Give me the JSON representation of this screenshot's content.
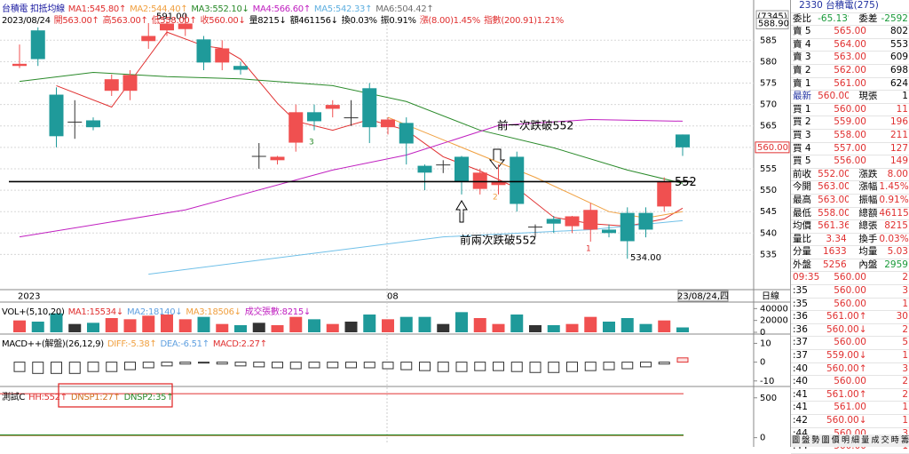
{
  "header": {
    "line1": [
      {
        "text": "台積電 扣抵均線",
        "color": "#1a1aa0"
      },
      {
        "text": "MA1:545.80↑",
        "color": "#e03030"
      },
      {
        "text": "MA2:544.40↑",
        "color": "#f0a040"
      },
      {
        "text": "MA3:552.10↓",
        "color": "#2a8a2a"
      },
      {
        "text": "MA4:566.60↑",
        "color": "#c020c0"
      },
      {
        "text": "MA5:542.33↑",
        "color": "#60b0e0"
      },
      {
        "text": "MA6:504.42↑",
        "color": "#707070"
      }
    ],
    "line2": [
      {
        "text": "2023/08/24",
        "color": "#000000"
      },
      {
        "text": "開563.00↑",
        "color": "#e03030"
      },
      {
        "text": "高563.00↑",
        "color": "#e03030"
      },
      {
        "text": "低558.00↑",
        "color": "#e03030"
      },
      {
        "text": "收560.00↓",
        "color": "#e03030"
      },
      {
        "text": "量8215↓",
        "color": "#000000"
      },
      {
        "text": "額461156↓",
        "color": "#000000"
      },
      {
        "text": "換0.03%",
        "color": "#000000"
      },
      {
        "text": "振0.91%",
        "color": "#000000"
      },
      {
        "text": "漲(8.00)1.45%",
        "color": "#e03030"
      },
      {
        "text": "指數(200.91)1.21%",
        "color": "#e03030"
      }
    ]
  },
  "price": {
    "ylim": [
      527,
      589
    ],
    "yticks": [
      535,
      540,
      545,
      550,
      555,
      560,
      565,
      570,
      575,
      580,
      585
    ],
    "code": "(7345)",
    "top": {
      "value": 588.9,
      "label": "588.90"
    },
    "current": {
      "value": 560,
      "label": "560.00"
    },
    "up_color": "#f05050",
    "down_color": "#1f9a9a",
    "candles": [
      [
        579,
        584,
        578.5,
        579.5
      ],
      [
        587.3,
        588,
        579,
        580.6
      ],
      [
        572.3,
        574,
        560,
        562.6
      ],
      [
        566,
        571,
        562,
        566
      ],
      [
        566.3,
        567,
        564,
        564.7
      ],
      [
        573.2,
        577,
        572,
        575.9
      ],
      [
        573.2,
        578,
        571,
        576.9
      ],
      [
        584.8,
        589,
        583,
        586
      ],
      [
        587.3,
        589.5,
        586,
        588.9
      ],
      [
        587.6,
        591,
        586,
        588.9
      ],
      [
        585.2,
        586,
        578,
        579.8
      ],
      [
        579.8,
        585,
        578,
        583.1
      ],
      [
        579,
        580,
        577,
        578.1
      ],
      [
        558,
        561,
        555,
        558
      ],
      [
        557,
        558,
        556,
        557.8
      ],
      [
        561.1,
        570,
        559,
        568.2
      ],
      [
        568.2,
        570,
        564,
        566.1
      ],
      [
        569,
        571,
        567,
        569.9
      ],
      [
        567,
        571,
        565,
        567
      ],
      [
        573.8,
        575,
        561,
        564.7
      ],
      [
        564.7,
        567,
        563,
        566.5
      ],
      [
        565.7,
        567,
        556,
        560.9
      ],
      [
        555.7,
        556,
        550,
        554.1
      ],
      [
        556,
        557,
        554,
        556
      ],
      [
        557.8,
        558,
        549,
        552
      ],
      [
        550.3,
        555,
        549,
        554.1
      ],
      [
        551.2,
        556,
        549,
        552
      ],
      [
        557.8,
        559,
        545,
        546.8
      ],
      [
        541.5,
        542,
        539,
        541.5
      ],
      [
        543.3,
        544,
        540,
        542.2
      ],
      [
        541.6,
        544,
        540,
        543.9
      ],
      [
        540.8,
        547,
        538,
        545.4
      ],
      [
        540.8,
        542,
        539,
        540
      ],
      [
        544.7,
        546,
        534,
        538.1
      ],
      [
        544.7,
        546,
        539,
        540.8
      ],
      [
        546.2,
        553,
        545,
        552
      ],
      [
        563,
        563,
        558,
        560
      ]
    ],
    "ma": [
      {
        "color": "#e03030",
        "x": [
          2,
          5,
          8,
          10,
          11,
          12,
          14,
          15,
          17,
          19,
          21,
          23,
          25,
          27,
          29,
          31,
          33,
          35,
          36
        ],
        "values": [
          574.4,
          569.4,
          586.9,
          583.7,
          583.1,
          580.6,
          570.3,
          566.1,
          564,
          566.5,
          564,
          557.8,
          554.5,
          550.5,
          543.7,
          542.2,
          541.6,
          543.3,
          545.8
        ]
      },
      {
        "color": "#f0a040",
        "x": [
          20,
          24,
          28,
          32,
          34,
          36
        ],
        "values": [
          567,
          560,
          553,
          545,
          543.5,
          545
        ]
      },
      {
        "color": "#2a8a2a",
        "x": [
          0,
          4,
          8,
          12,
          17,
          21,
          25,
          29,
          33,
          36
        ],
        "values": [
          575.4,
          577.5,
          576.5,
          576,
          574.4,
          570.7,
          564,
          559.9,
          554.7,
          551.6
        ]
      },
      {
        "color": "#c020c0",
        "x": [
          0,
          9,
          17,
          21,
          26,
          31,
          36
        ],
        "values": [
          539.1,
          545.4,
          554.7,
          558.2,
          565.1,
          566.5,
          566.1
        ]
      },
      {
        "color": "#70c0e8",
        "x": [
          7,
          23,
          31,
          36
        ],
        "values": [
          530.4,
          539.1,
          540.8,
          542.9
        ]
      }
    ],
    "extremes": [
      {
        "label": "591.00",
        "value": 591
      },
      {
        "label": "534.00",
        "value": 534
      }
    ],
    "level": {
      "value": 552,
      "label": "552"
    },
    "notes": [
      "前一次跌破552",
      "前兩次跌破552"
    ],
    "counts": [
      "3",
      "2",
      "1"
    ],
    "xlabels": [
      "2023",
      "08"
    ],
    "date_box": "23/08/24,四",
    "period": "日線"
  },
  "volume": {
    "title": [
      {
        "text": "VOL+(5,10,20)",
        "color": "#000000"
      },
      {
        "text": "MA1:15534↓",
        "color": "#e03030"
      },
      {
        "text": "MA2:18140↓",
        "color": "#60a0e0"
      },
      {
        "text": "MA3:18506↓",
        "color": "#f0a040"
      },
      {
        "text": "成交張數:8215↓",
        "color": "#c020c0"
      }
    ],
    "ylim": [
      0,
      45000
    ],
    "yticks": [
      0,
      20000,
      40000
    ],
    "values": [
      20000,
      18000,
      32000,
      14000,
      16000,
      24000,
      22000,
      28000,
      30000,
      22000,
      26000,
      14000,
      12000,
      16000,
      12000,
      26000,
      22000,
      14000,
      18000,
      30000,
      22000,
      26000,
      26000,
      14000,
      34000,
      24000,
      14000,
      30000,
      12000,
      12000,
      14000,
      26000,
      18000,
      24000,
      14000,
      20000,
      8215
    ]
  },
  "macd": {
    "title": [
      {
        "text": "MACD++(解盤)(26,12,9)",
        "color": "#000000"
      },
      {
        "text": "DIFF:-5.38↑",
        "color": "#f0a040"
      },
      {
        "text": "DEA:-6.51↑",
        "color": "#60a0e0"
      },
      {
        "text": "MACD:2.27↑",
        "color": "#e03030"
      }
    ],
    "ylim": [
      -12,
      14
    ],
    "yticks": [
      -10,
      0,
      10
    ],
    "values": [
      -5,
      -6,
      -6,
      -6,
      -5,
      -5,
      -4,
      -3,
      -2,
      -1,
      -0.5,
      -1,
      -2,
      -2.5,
      -3,
      -3.5,
      -3,
      -3,
      -3,
      -3,
      -3.5,
      -4,
      -4.5,
      -5,
      -5,
      -4.5,
      -4.5,
      -5,
      -5.5,
      -5.5,
      -5,
      -4.5,
      -4,
      -3.5,
      -2.5,
      -1,
      2.27
    ]
  },
  "test": {
    "title": [
      {
        "text": "測試C",
        "color": "#000000"
      },
      {
        "text": "HH:552↑",
        "color": "#e03030"
      },
      {
        "text": "DNSP1:27↑",
        "color": "#d07020"
      },
      {
        "text": "DNSP2:35↑",
        "color": "#2a8a2a"
      }
    ],
    "ylim": [
      -60,
      620
    ],
    "yticks": [
      0,
      500
    ],
    "lines": [
      {
        "color": "#e03030",
        "value": 552
      },
      {
        "color": "#a07030",
        "value": 27
      },
      {
        "color": "#2a8a2a",
        "value": 35
      }
    ]
  },
  "quote": {
    "title": "2330 台積電(275)",
    "ratio": [
      "委比",
      "-65.13%",
      "委差",
      "-2592"
    ],
    "asks": [
      [
        "賣 5",
        "565.00",
        "802"
      ],
      [
        "賣 4",
        "564.00",
        "553"
      ],
      [
        "賣 3",
        "563.00",
        "609"
      ],
      [
        "賣 2",
        "562.00",
        "698"
      ],
      [
        "賣 1",
        "561.00",
        "624"
      ]
    ],
    "last": [
      "最新",
      "560.00",
      "現張",
      "1"
    ],
    "bids": [
      [
        "買 1",
        "560.00",
        "11"
      ],
      [
        "買 2",
        "559.00",
        "196"
      ],
      [
        "買 3",
        "558.00",
        "211"
      ],
      [
        "買 4",
        "557.00",
        "127"
      ],
      [
        "買 5",
        "556.00",
        "149"
      ]
    ],
    "stats": [
      [
        "前收",
        "552.00",
        "漲跌",
        "8.00"
      ],
      [
        "今開",
        "563.00",
        "漲幅",
        "1.45%"
      ],
      [
        "最高",
        "563.00",
        "振幅",
        "0.91%"
      ],
      [
        "最低",
        "558.00",
        "總額",
        "461156"
      ],
      [
        "均價",
        "561.36",
        "總張",
        "8215"
      ],
      [
        "量比",
        "3.34",
        "換手",
        "0.03%"
      ],
      [
        "分量",
        "1633",
        "均量",
        "5.03"
      ]
    ],
    "outer": [
      "外盤",
      "5256",
      "內盤",
      "2959"
    ],
    "ticks": [
      [
        "09:35",
        "560.00",
        "2"
      ],
      [
        ":35",
        "560.00",
        "3"
      ],
      [
        ":35",
        "560.00",
        "1"
      ],
      [
        ":36",
        "561.00↑",
        "30"
      ],
      [
        ":36",
        "560.00↓",
        "2"
      ],
      [
        ":37",
        "560.00",
        "5"
      ],
      [
        ":37",
        "559.00↓",
        "1"
      ],
      [
        ":40",
        "560.00↑",
        "3"
      ],
      [
        ":40",
        "560.00",
        "2"
      ],
      [
        ":41",
        "561.00↑",
        "2"
      ],
      [
        ":41",
        "561.00",
        "1"
      ],
      [
        ":42",
        "560.00↓",
        "1"
      ],
      [
        ":44",
        "560.00",
        "3"
      ],
      [
        ":44",
        "560.00",
        "1"
      ]
    ],
    "tabs": [
      "圖",
      "盤",
      "勢",
      "圖",
      "價",
      "明",
      "細",
      "量",
      "成",
      "交",
      "時",
      "籌"
    ]
  }
}
